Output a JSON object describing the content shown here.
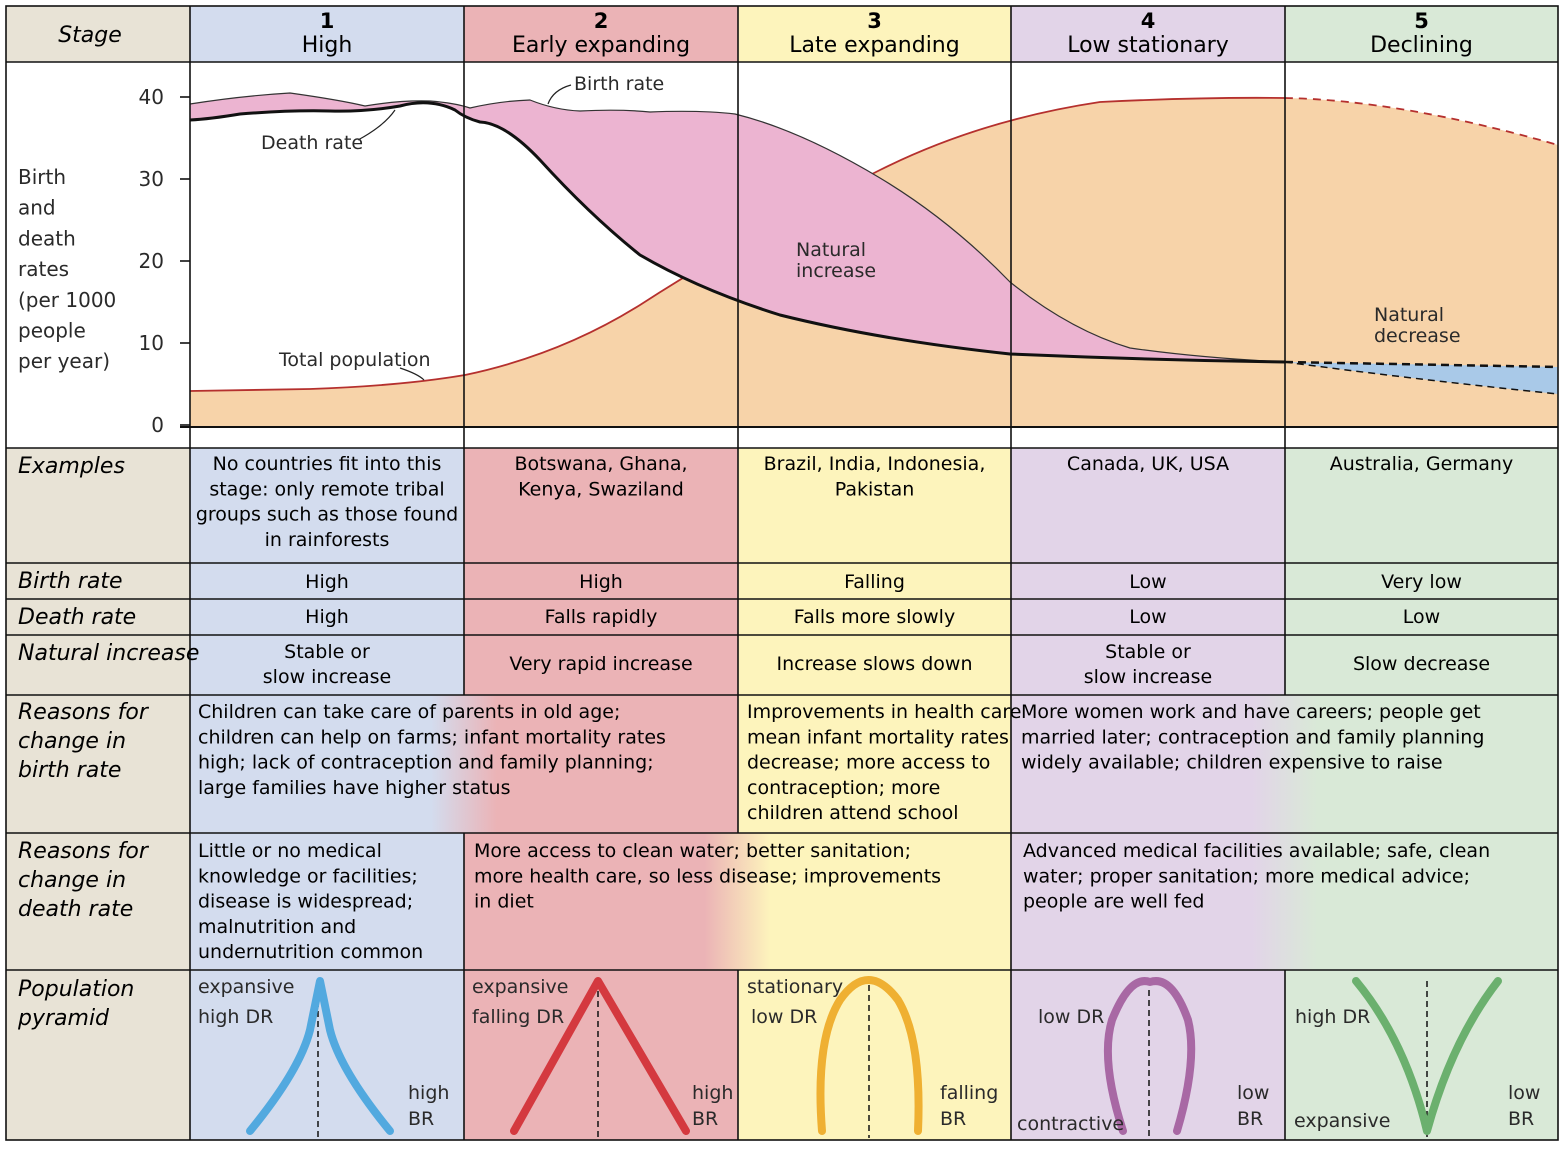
{
  "stages": [
    {
      "number": "1",
      "name": "High",
      "color": "#d3dcee"
    },
    {
      "number": "2",
      "name": "Early expanding",
      "color": "#ebb3b6"
    },
    {
      "number": "3",
      "name": "Late expanding",
      "color": "#fdf4bc"
    },
    {
      "number": "4",
      "name": "Low stationary",
      "color": "#e2d4e8"
    },
    {
      "number": "5",
      "name": "Declining",
      "color": "#d9e9d7"
    }
  ],
  "row_labels": {
    "stage": "Stage",
    "examples": "Examples",
    "birth_rate": "Birth rate",
    "death_rate": "Death rate",
    "natural_increase": "Natural increase",
    "reasons_birth": [
      "Reasons for",
      "change in",
      "birth rate"
    ],
    "reasons_death": [
      "Reasons for",
      "change in",
      "death rate"
    ],
    "pyramid": [
      "Population",
      "pyramid"
    ]
  },
  "graph": {
    "y_axis_label": [
      "Birth",
      "and",
      "death",
      "rates",
      "(per 1000",
      "people",
      "per year)"
    ],
    "y_ticks": [
      "40",
      "30",
      "20",
      "10",
      "0"
    ],
    "labels": {
      "birth_rate": "Birth rate",
      "death_rate": "Death rate",
      "total_population": "Total population",
      "natural_increase": [
        "Natural",
        "increase"
      ],
      "natural_decrease": [
        "Natural",
        "decrease"
      ]
    },
    "colors": {
      "population_fill": "#f7d3a9",
      "population_line": "#b5302e",
      "natural_increase_fill": "#ecb4d1",
      "natural_decrease_fill": "#a9c9e8",
      "death_line": "#111111"
    }
  },
  "examples": [
    "No countries fit into this stage: only remote tribal groups such as those found in rainforests",
    "Botswana, Ghana, Kenya, Swaziland",
    "Brazil, India, Indonesia, Pakistan",
    "Canada, UK, USA",
    "Australia, Germany"
  ],
  "birth_rate": [
    "High",
    "High",
    "Falling",
    "Low",
    "Very low"
  ],
  "death_rate": [
    "High",
    "Falls rapidly",
    "Falls more slowly",
    "Low",
    "Low"
  ],
  "natural_increase": [
    [
      "Stable or",
      "slow increase"
    ],
    "Very rapid increase",
    "Increase slows down",
    [
      "Stable or",
      "slow increase"
    ],
    "Slow decrease"
  ],
  "reasons_birth": {
    "stages_1_2": [
      "Children can take care of parents in old age;",
      "children can help on farms; infant mortality rates",
      "high; lack of contraception and family planning;",
      "large families have higher status"
    ],
    "stage_3": [
      "Improvements in health care",
      "mean infant mortality rates",
      "decrease; more access to",
      "contraception; more",
      "children attend school"
    ],
    "stages_4_5": [
      "More women work and have careers; people get",
      "married later; contraception and family planning",
      "widely available; children expensive to raise"
    ]
  },
  "reasons_death": {
    "stage_1": [
      "Little or no medical",
      "knowledge or facilities;",
      "disease is widespread;",
      "malnutrition and",
      "undernutrition common"
    ],
    "stages_2_3": [
      "More access to clean water; better sanitation;",
      "more health care, so less disease; improvements",
      "in diet"
    ],
    "stages_4_5": [
      "Advanced medical facilities available; safe, clean",
      "water; proper sanitation; more medical advice;",
      "people are well fed"
    ]
  },
  "pyramids": [
    {
      "labels": [
        "expansive",
        "high DR",
        "high",
        "BR"
      ],
      "color": "#52a9df"
    },
    {
      "labels": [
        "expansive",
        "falling DR",
        "high",
        "BR"
      ],
      "color": "#d4393f"
    },
    {
      "labels": [
        "stationary",
        "low DR",
        "falling",
        "BR"
      ],
      "color": "#efb032"
    },
    {
      "labels": [
        "low DR",
        "contractive",
        "low",
        "BR"
      ],
      "color": "#a868a4"
    },
    {
      "labels": [
        "high DR",
        "expansive",
        "low",
        "BR"
      ],
      "color": "#6bb06e"
    }
  ]
}
